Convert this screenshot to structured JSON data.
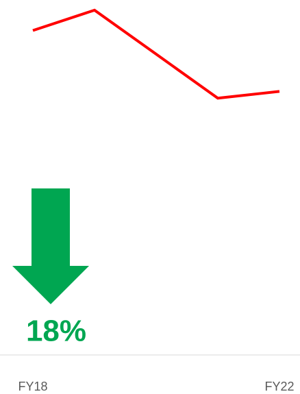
{
  "chart_data": {
    "type": "line",
    "categories": [
      "FY18",
      null,
      null,
      null,
      "FY22"
    ],
    "series": [
      {
        "color": "#ff0000",
        "values": [
          100,
          106,
          93,
          80,
          82
        ]
      }
    ],
    "ylim": [
      75,
      109
    ],
    "annotation": "18%",
    "annotation_color": "#00a651"
  }
}
